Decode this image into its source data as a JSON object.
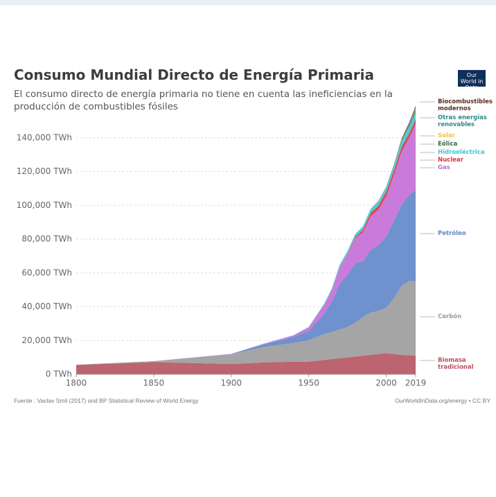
{
  "chart_data": {
    "type": "stacked-area",
    "title": "Consumo Mundial Directo de Energía Primaria",
    "subtitle": "El consumo directo de energía primaria no tiene en cuenta las ineficiencias en la producción de combustibles fósiles",
    "logo": "Our World in Data",
    "source": "Fuente : Vaclav Smil (2017) and BP Statistical Review of World Energy",
    "license": "OurWorldInData.org/energy • CC BY",
    "x": [
      1800,
      1850,
      1900,
      1920,
      1940,
      1950,
      1960,
      1965,
      1970,
      1975,
      1980,
      1985,
      1990,
      1995,
      2000,
      2005,
      2010,
      2015,
      2019
    ],
    "xlim": [
      1800,
      2019
    ],
    "xticks": [
      1800,
      1850,
      1900,
      1950,
      2000,
      2019
    ],
    "ylim": [
      0,
      160000
    ],
    "yticks": [
      {
        "value": 0,
        "label": "0 TWh"
      },
      {
        "value": 20000,
        "label": "20,000 TWh"
      },
      {
        "value": 40000,
        "label": "40,000 TWh"
      },
      {
        "value": 60000,
        "label": "60,000 TWh"
      },
      {
        "value": 80000,
        "label": "80,000 TWh"
      },
      {
        "value": 100000,
        "label": "100,000 TWh"
      },
      {
        "value": 120000,
        "label": "120,000 TWh"
      },
      {
        "value": 140000,
        "label": "140,000 TWh"
      }
    ],
    "grid": true,
    "series": [
      {
        "name": "Biomasa tradicional",
        "color": "#b5535f",
        "values": [
          5556,
          7222,
          6111,
          7000,
          7500,
          7500,
          8500,
          9000,
          9500,
          10000,
          10500,
          11000,
          11500,
          12000,
          12500,
          12000,
          11500,
          11300,
          11100
        ]
      },
      {
        "name": "Carbón",
        "color": "#9b9b9b",
        "values": [
          97,
          570,
          5728,
          9000,
          11000,
          12600,
          15400,
          16100,
          17000,
          18000,
          20000,
          23000,
          25000,
          25500,
          27000,
          33000,
          41000,
          44000,
          44000
        ]
      },
      {
        "name": "Petróleo",
        "color": "#5f85c8",
        "values": [
          0,
          0,
          181,
          1500,
          3500,
          5500,
          12000,
          18000,
          27000,
          31000,
          35000,
          33000,
          37000,
          39000,
          42000,
          46000,
          48000,
          51000,
          54000
        ]
      },
      {
        "name": "Gas",
        "color": "#c46cd6",
        "values": [
          0,
          0,
          64,
          300,
          900,
          2100,
          5200,
          7000,
          10000,
          12000,
          15000,
          17000,
          20000,
          21000,
          24000,
          27000,
          31500,
          34000,
          39000
        ]
      },
      {
        "name": "Nuclear",
        "color": "#e0323a",
        "values": [
          0,
          0,
          0,
          0,
          0,
          0,
          0,
          25,
          80,
          370,
          700,
          1500,
          2000,
          2300,
          2500,
          2650,
          2700,
          2600,
          2800
        ]
      },
      {
        "name": "Hidroeléctrica",
        "color": "#3cc6d4",
        "values": [
          0,
          0,
          0,
          100,
          200,
          340,
          700,
          900,
          1200,
          1450,
          1700,
          2000,
          2200,
          2500,
          2700,
          3000,
          3450,
          3900,
          4200
        ]
      },
      {
        "name": "Eólica",
        "color": "#2f6b3d",
        "values": [
          0,
          0,
          0,
          0,
          0,
          0,
          0,
          0,
          0,
          0,
          0,
          0,
          0,
          0,
          31,
          104,
          342,
          831,
          1420
        ]
      },
      {
        "name": "Solar",
        "color": "#f2c443",
        "values": [
          0,
          0,
          0,
          0,
          0,
          0,
          0,
          0,
          0,
          0,
          0,
          0,
          0,
          0,
          0,
          4,
          32,
          253,
          724
        ]
      },
      {
        "name": "Otras energías renovables",
        "color": "#2b8a8c",
        "values": [
          0,
          0,
          0,
          0,
          0,
          0,
          0,
          20,
          30,
          40,
          60,
          100,
          150,
          180,
          210,
          240,
          340,
          480,
          590
        ]
      },
      {
        "name": "Biocombustibles modernos",
        "color": "#5b2c1d",
        "values": [
          0,
          0,
          0,
          0,
          0,
          0,
          0,
          0,
          0,
          0,
          0,
          0,
          70,
          100,
          110,
          200,
          680,
          900,
          1100
        ]
      }
    ]
  }
}
